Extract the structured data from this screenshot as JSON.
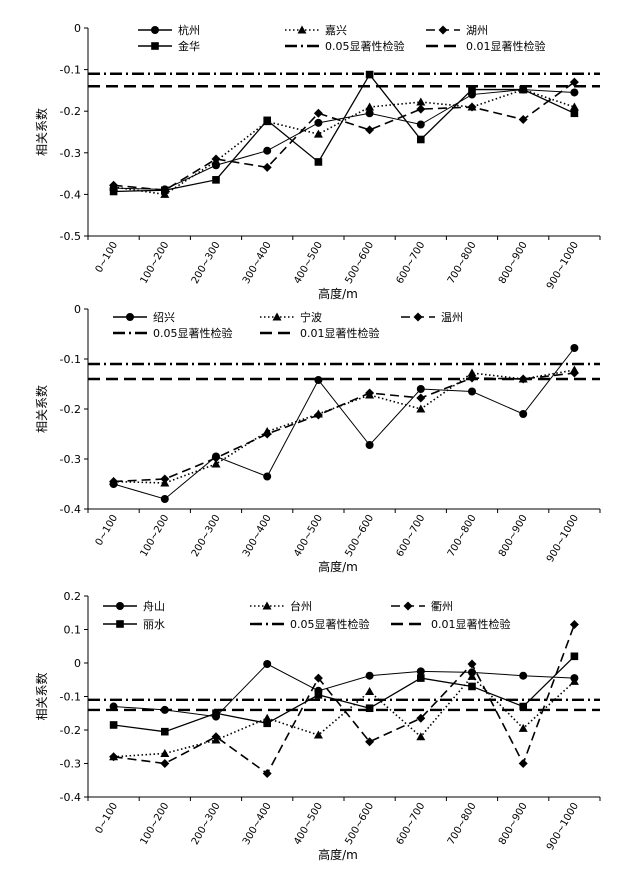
{
  "chart_data": [
    {
      "type": "line",
      "ylabel": "相关系数",
      "xlabel": "高度/m",
      "ylim": [
        -0.5,
        0
      ],
      "yticks": [
        "0",
        "-0.1",
        "-0.2",
        "-0.3",
        "-0.4",
        "-0.5"
      ],
      "categories": [
        "0~100",
        "100~200",
        "200~300",
        "300~400",
        "400~500",
        "500~600",
        "600~700",
        "700~800",
        "800~900",
        "900~1000"
      ],
      "series": [
        {
          "name": "杭州",
          "values": [
            -0.385,
            -0.388,
            -0.33,
            -0.295,
            -0.228,
            -0.205,
            -0.232,
            -0.16,
            -0.148,
            -0.155
          ]
        },
        {
          "name": "嘉兴",
          "values": [
            -0.382,
            -0.4,
            -0.32,
            -0.225,
            -0.255,
            -0.19,
            -0.178,
            -0.19,
            -0.148,
            -0.19
          ]
        },
        {
          "name": "湖州",
          "values": [
            -0.378,
            -0.39,
            -0.315,
            -0.335,
            -0.205,
            -0.245,
            -0.195,
            -0.19,
            -0.22,
            -0.13
          ]
        },
        {
          "name": "金华",
          "values": [
            -0.393,
            -0.39,
            -0.365,
            -0.222,
            -0.322,
            -0.112,
            -0.268,
            -0.148,
            -0.148,
            -0.205
          ]
        }
      ],
      "thresholds": [
        {
          "name": "0.05显著性检验",
          "value": -0.11
        },
        {
          "name": "0.01显著性检验",
          "value": -0.14
        }
      ]
    },
    {
      "type": "line",
      "ylabel": "相关系数",
      "xlabel": "高度/m",
      "ylim": [
        -0.4,
        0
      ],
      "yticks": [
        "0",
        "-0.1",
        "-0.2",
        "-0.3",
        "-0.4"
      ],
      "categories": [
        "0~100",
        "100~200",
        "200~300",
        "300~400",
        "400~500",
        "500~600",
        "600~700",
        "700~800",
        "800~900",
        "900~1000"
      ],
      "series": [
        {
          "name": "绍兴",
          "values": [
            -0.35,
            -0.38,
            -0.295,
            -0.335,
            -0.142,
            -0.272,
            -0.16,
            -0.165,
            -0.21,
            -0.078
          ]
        },
        {
          "name": "宁波",
          "values": [
            -0.345,
            -0.348,
            -0.31,
            -0.245,
            -0.21,
            -0.172,
            -0.2,
            -0.128,
            -0.14,
            -0.122
          ]
        },
        {
          "name": "温州",
          "values": [
            -0.345,
            -0.34,
            -0.298,
            -0.25,
            -0.212,
            -0.168,
            -0.178,
            -0.138,
            -0.14,
            -0.128
          ]
        }
      ],
      "thresholds": [
        {
          "name": "0.05显著性检验",
          "value": -0.11
        },
        {
          "name": "0.01显著性检验",
          "value": -0.14
        }
      ]
    },
    {
      "type": "line",
      "ylabel": "相关系数",
      "xlabel": "高度/m",
      "ylim": [
        -0.4,
        0.2
      ],
      "yticks": [
        "0.2",
        "0.1",
        "0",
        "-0.1",
        "-0.2",
        "-0.3",
        "-0.4"
      ],
      "categories": [
        "0~100",
        "100~200",
        "200~300",
        "300~400",
        "400~500",
        "500~600",
        "600~700",
        "700~800",
        "800~900",
        "900~1000"
      ],
      "series": [
        {
          "name": "舟山",
          "values": [
            -0.13,
            -0.14,
            -0.16,
            -0.003,
            -0.083,
            -0.038,
            -0.025,
            -0.028,
            -0.038,
            -0.045
          ]
        },
        {
          "name": "台州",
          "values": [
            -0.28,
            -0.27,
            -0.23,
            -0.165,
            -0.215,
            -0.085,
            -0.22,
            -0.04,
            -0.195,
            -0.055
          ]
        },
        {
          "name": "衢州",
          "values": [
            -0.28,
            -0.3,
            -0.22,
            -0.33,
            -0.045,
            -0.235,
            -0.165,
            -0.003,
            -0.3,
            0.115
          ]
        },
        {
          "name": "丽水",
          "values": [
            -0.185,
            -0.205,
            -0.15,
            -0.18,
            -0.095,
            -0.135,
            -0.045,
            -0.07,
            -0.13,
            0.02
          ]
        }
      ],
      "thresholds": [
        {
          "name": "0.05显著性检验",
          "value": -0.11
        },
        {
          "name": "0.01显著性检验",
          "value": -0.14
        }
      ]
    }
  ]
}
